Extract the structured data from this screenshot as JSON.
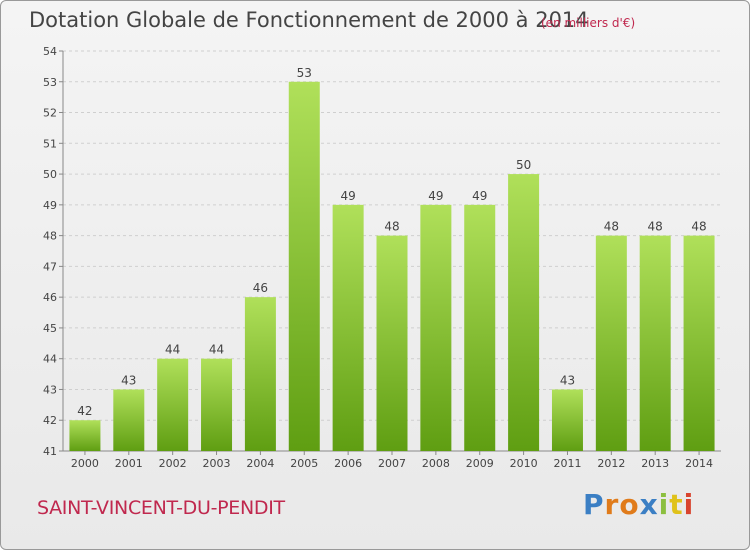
{
  "header": {
    "title": "Dotation Globale de Fonctionnement de 2000 à 2014",
    "unit": "(en milliers d'€)"
  },
  "footer": {
    "commune": "SAINT-VINCENT-DU-PENDIT",
    "logo_letters": [
      "P",
      "r",
      "o",
      "x",
      "i",
      "t",
      "i"
    ],
    "logo_colors": [
      "#3b7fc4",
      "#e07b1a",
      "#e07b1a",
      "#3b7fc4",
      "#8cbf3f",
      "#e0c21a",
      "#d9442e"
    ]
  },
  "colors": {
    "bar_light": "#b0e05a",
    "bar_dark": "#5f9e12",
    "grid": "#cfcfcf",
    "axis_text": "#444444"
  },
  "chart_data": {
    "type": "bar",
    "categories": [
      "2000",
      "2001",
      "2002",
      "2003",
      "2004",
      "2005",
      "2006",
      "2007",
      "2008",
      "2009",
      "2010",
      "2011",
      "2012",
      "2013",
      "2014"
    ],
    "values": [
      42,
      43,
      44,
      44,
      46,
      53,
      49,
      48,
      49,
      49,
      50,
      43,
      48,
      48,
      48
    ],
    "ylim": [
      41,
      54
    ],
    "yticks": [
      41,
      42,
      43,
      44,
      45,
      46,
      47,
      48,
      49,
      50,
      51,
      52,
      53,
      54
    ],
    "grid": "horizontal-dashed",
    "xlabel": "",
    "ylabel": ""
  }
}
